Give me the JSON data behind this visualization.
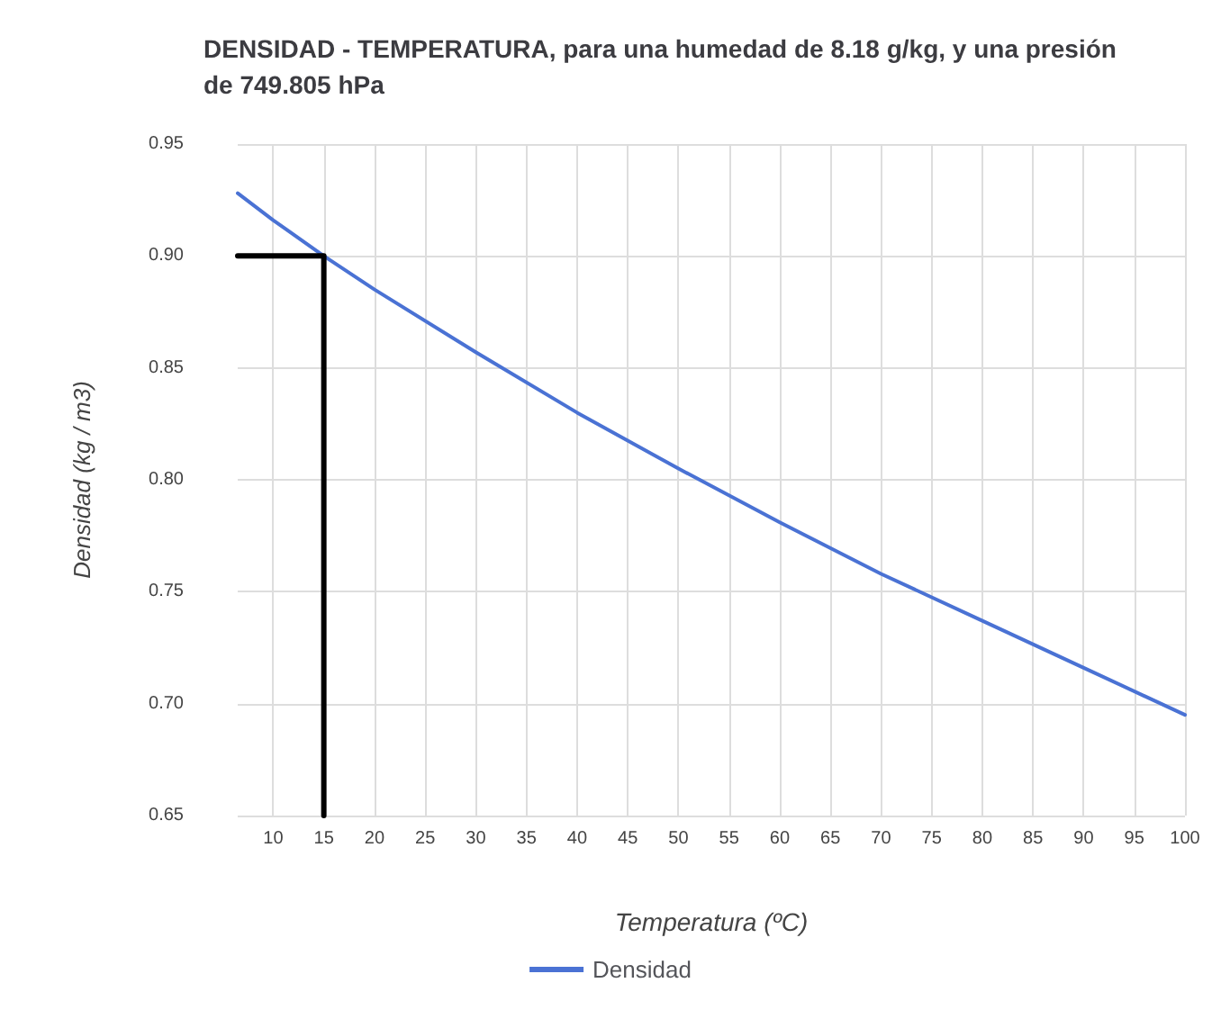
{
  "chart_data": {
    "type": "line",
    "title": "DENSIDAD - TEMPERATURA, para una humedad de 8.18 g/kg, y una presión de 749.805 hPa",
    "xlabel": "Temperatura (ºC)",
    "ylabel": "Densidad (kg / m3)",
    "series": [
      {
        "name": "Densidad",
        "color": "#4a72d4",
        "x": [
          6.5,
          10,
          15,
          20,
          30,
          40,
          50,
          60,
          70,
          80,
          90,
          100
        ],
        "values": [
          0.928,
          0.916,
          0.9,
          0.885,
          0.857,
          0.83,
          0.805,
          0.781,
          0.758,
          0.737,
          0.716,
          0.695
        ]
      },
      {
        "color": "#000000",
        "x": [
          6.5,
          15,
          15
        ],
        "values": [
          0.9,
          0.9,
          0.65
        ]
      }
    ],
    "xlim": [
      6.5,
      100
    ],
    "xticks": [
      10,
      15,
      20,
      25,
      30,
      35,
      40,
      45,
      50,
      55,
      60,
      65,
      70,
      75,
      80,
      85,
      90,
      95,
      100
    ],
    "ylim": [
      0.65,
      0.95
    ],
    "yticks": [
      0.65,
      {
        "value": 0.7,
        "label": "0.70"
      },
      0.75,
      {
        "value": 0.8,
        "label": "0.80"
      },
      0.85,
      {
        "value": 0.9,
        "label": "0.90"
      },
      0.95
    ],
    "grid": true,
    "legend": "bottom",
    "marker": "none",
    "line_style": "solid"
  }
}
